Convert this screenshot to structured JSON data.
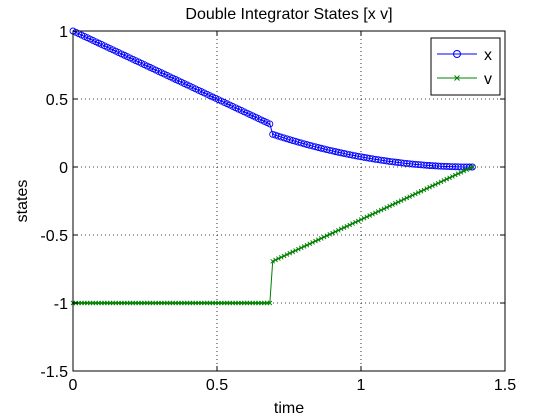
{
  "chart_data": {
    "type": "line",
    "title": "Double Integrator States [x v]",
    "xlabel": "time",
    "ylabel": "states",
    "xlim": [
      0,
      1.5
    ],
    "ylim": [
      -1.5,
      1
    ],
    "xticks": [
      0,
      0.5,
      1,
      1.5
    ],
    "xtick_labels": [
      "0",
      "0.5",
      "1",
      "1.5"
    ],
    "yticks": [
      -1.5,
      -1,
      -0.5,
      0,
      0.5,
      1
    ],
    "ytick_labels": [
      "-1.5",
      "-1",
      "-0.5",
      "0",
      "0.5",
      "1"
    ],
    "grid": true,
    "grid_style": "dotted",
    "legend_position": "top-right",
    "t_end": 1.3868,
    "switch_time": 0.6934,
    "series": [
      {
        "name": "x",
        "marker": "circle",
        "color": "#0000ff",
        "points": [
          [
            0,
            1
          ],
          [
            0.05,
            0.95
          ],
          [
            0.1,
            0.9
          ],
          [
            0.15,
            0.85
          ],
          [
            0.2,
            0.8
          ],
          [
            0.25,
            0.75
          ],
          [
            0.3,
            0.7
          ],
          [
            0.35,
            0.65
          ],
          [
            0.4,
            0.6
          ],
          [
            0.45,
            0.55
          ],
          [
            0.5,
            0.5
          ],
          [
            0.55,
            0.45
          ],
          [
            0.6,
            0.4
          ],
          [
            0.65,
            0.35
          ],
          [
            0.7,
            0.3
          ],
          [
            0.75,
            0.25
          ],
          [
            0.8,
            0.21
          ],
          [
            0.85,
            0.17
          ],
          [
            0.9,
            0.14
          ],
          [
            0.95,
            0.11
          ],
          [
            1.0,
            0.08
          ],
          [
            1.05,
            0.06
          ],
          [
            1.1,
            0.04
          ],
          [
            1.15,
            0.03
          ],
          [
            1.2,
            0.02
          ],
          [
            1.25,
            0.01
          ],
          [
            1.3,
            0.005
          ],
          [
            1.35,
            0.001
          ],
          [
            1.3868,
            0
          ]
        ]
      },
      {
        "name": "v",
        "marker": "x",
        "color": "#008000",
        "points": [
          [
            0,
            -1
          ],
          [
            0.1,
            -1
          ],
          [
            0.2,
            -1
          ],
          [
            0.3,
            -1
          ],
          [
            0.4,
            -1
          ],
          [
            0.5,
            -1
          ],
          [
            0.6,
            -1
          ],
          [
            0.6934,
            -1
          ],
          [
            0.75,
            -0.92
          ],
          [
            0.8,
            -0.85
          ],
          [
            0.85,
            -0.77
          ],
          [
            0.9,
            -0.7
          ],
          [
            0.95,
            -0.63
          ],
          [
            1.0,
            -0.56
          ],
          [
            1.05,
            -0.48
          ],
          [
            1.1,
            -0.41
          ],
          [
            1.15,
            -0.34
          ],
          [
            1.2,
            -0.27
          ],
          [
            1.25,
            -0.19
          ],
          [
            1.3,
            -0.12
          ],
          [
            1.35,
            -0.05
          ],
          [
            1.3868,
            0
          ]
        ]
      }
    ]
  }
}
